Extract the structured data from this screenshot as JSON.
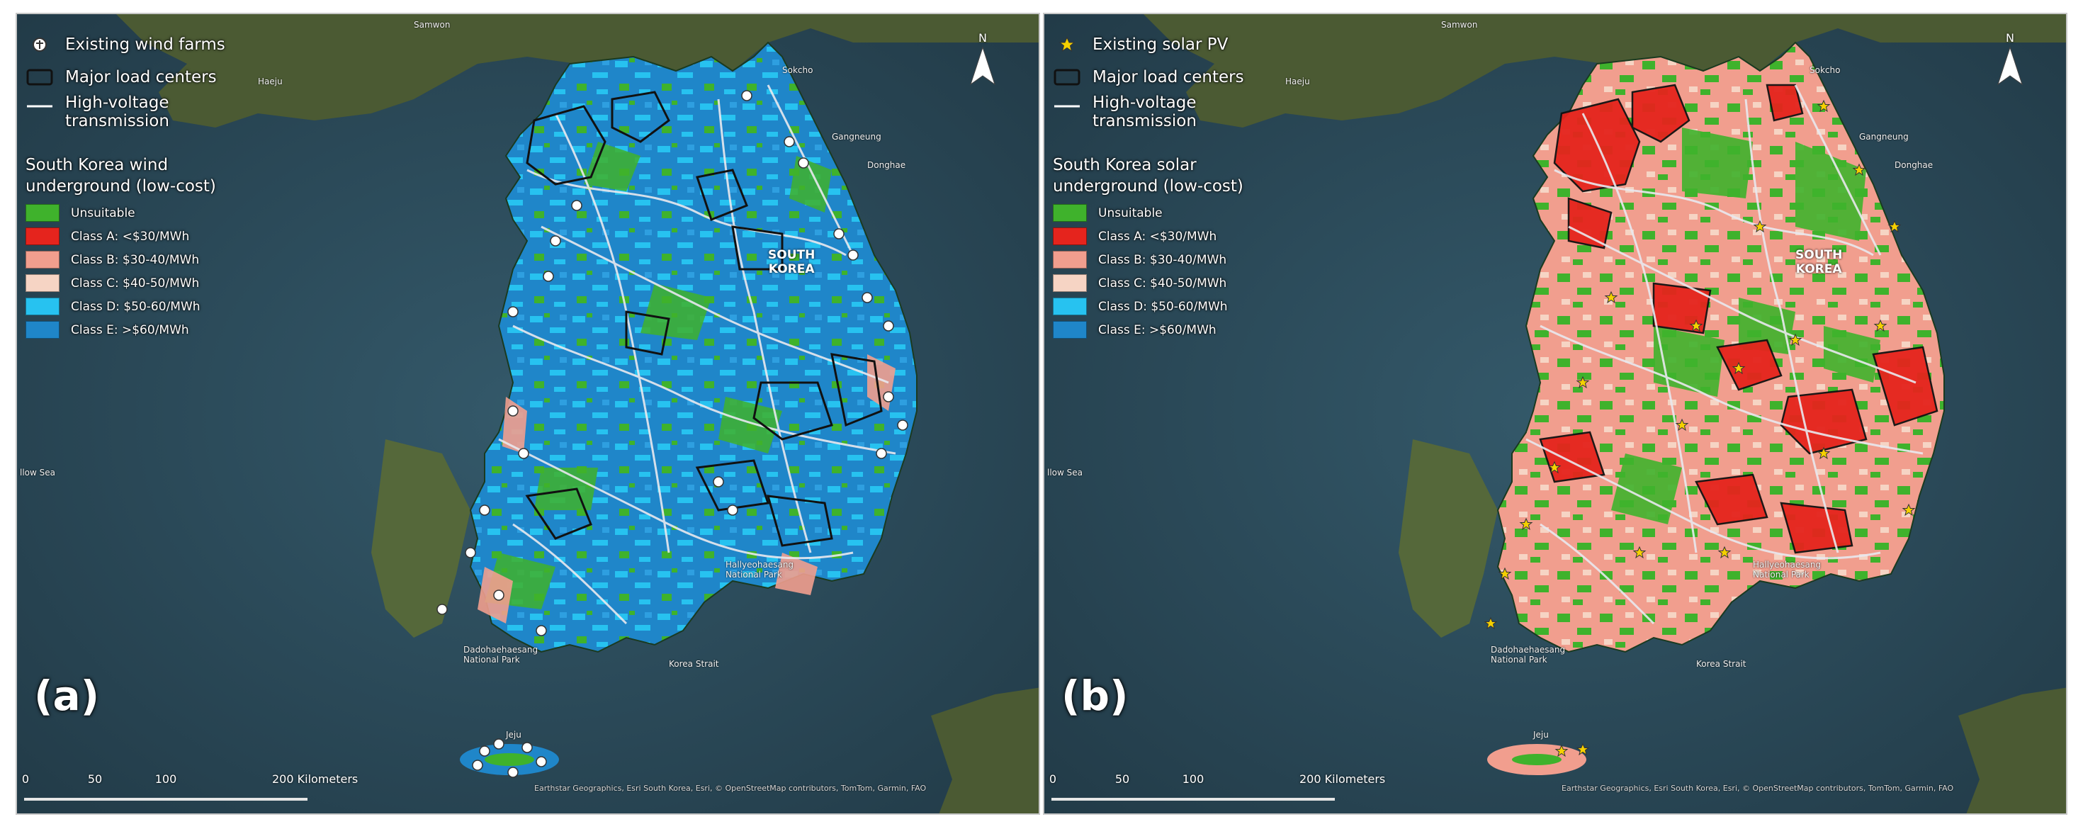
{
  "panels": [
    {
      "id": "a",
      "label": "(a)",
      "legend": {
        "existing_sites": "Existing wind farms",
        "existing_icon": "wind-turbine-marker-icon",
        "load_centers": "Major load centers",
        "transmission_line1": "High-voltage",
        "transmission_line2": "transmission",
        "title_line1": "South Korea wind",
        "title_line2": "underground (low-cost)",
        "classes": [
          {
            "label": "Unsuitable",
            "color": "#3fb22c"
          },
          {
            "label": "Class A: <$30/MWh",
            "color": "#e5241d"
          },
          {
            "label": "Class B: $30-40/MWh",
            "color": "#f19e8e"
          },
          {
            "label": "Class C: $40-50/MWh",
            "color": "#f6d4c4"
          },
          {
            "label": "Class D: $50-60/MWh",
            "color": "#27c2f0"
          },
          {
            "label": "Class E: >$60/MWh",
            "color": "#1f86c9"
          }
        ]
      },
      "north": "N",
      "country_line1": "SOUTH",
      "country_line2": "KOREA"
    },
    {
      "id": "b",
      "label": "(b)",
      "legend": {
        "existing_sites": "Existing solar PV",
        "existing_icon": "star-marker-icon",
        "load_centers": "Major load centers",
        "transmission_line1": "High-voltage",
        "transmission_line2": "transmission",
        "title_line1": "South Korea solar",
        "title_line2": "underground (low-cost)",
        "classes": [
          {
            "label": "Unsuitable",
            "color": "#3fb22c"
          },
          {
            "label": "Class A: <$30/MWh",
            "color": "#e5241d"
          },
          {
            "label": "Class B: $30-40/MWh",
            "color": "#f19e8e"
          },
          {
            "label": "Class C: $40-50/MWh",
            "color": "#f6d4c4"
          },
          {
            "label": "Class D: $50-60/MWh",
            "color": "#27c2f0"
          },
          {
            "label": "Class E: >$60/MWh",
            "color": "#1f86c9"
          }
        ]
      },
      "north": "N",
      "country_line1": "SOUTH",
      "country_line2": "KOREA"
    }
  ],
  "scale": {
    "ticks": [
      "0",
      "50",
      "100",
      "200"
    ],
    "units": "200 Kilometers"
  },
  "attribution": "Earthstar Geographics, Esri South Korea, Esri, © OpenStreetMap contributors, TomTom, Garmin, FAO",
  "places": {
    "samwon": "Samwon",
    "haeju": "Haeju",
    "sokcho": "Sokcho",
    "gangneung": "Gangneung",
    "donghae": "Donghae",
    "yellow_sea": "llow Sea",
    "national_park_1": "Hallyeohaesang National Park",
    "national_park_2": "Dadohaehaesang National Park",
    "korea_strait": "Korea Strait",
    "jeju": "Jeju"
  },
  "colors": {
    "sea": "#2c4a5a",
    "land_dark": "#3e4a2c",
    "unsuitable": "#3fb22c",
    "class_a": "#e5241d",
    "class_b": "#f19e8e",
    "class_e": "#1f86c9",
    "class_d": "#27c2f0",
    "transmission": "#e9e9ef",
    "load_center_outline": "#111111"
  }
}
